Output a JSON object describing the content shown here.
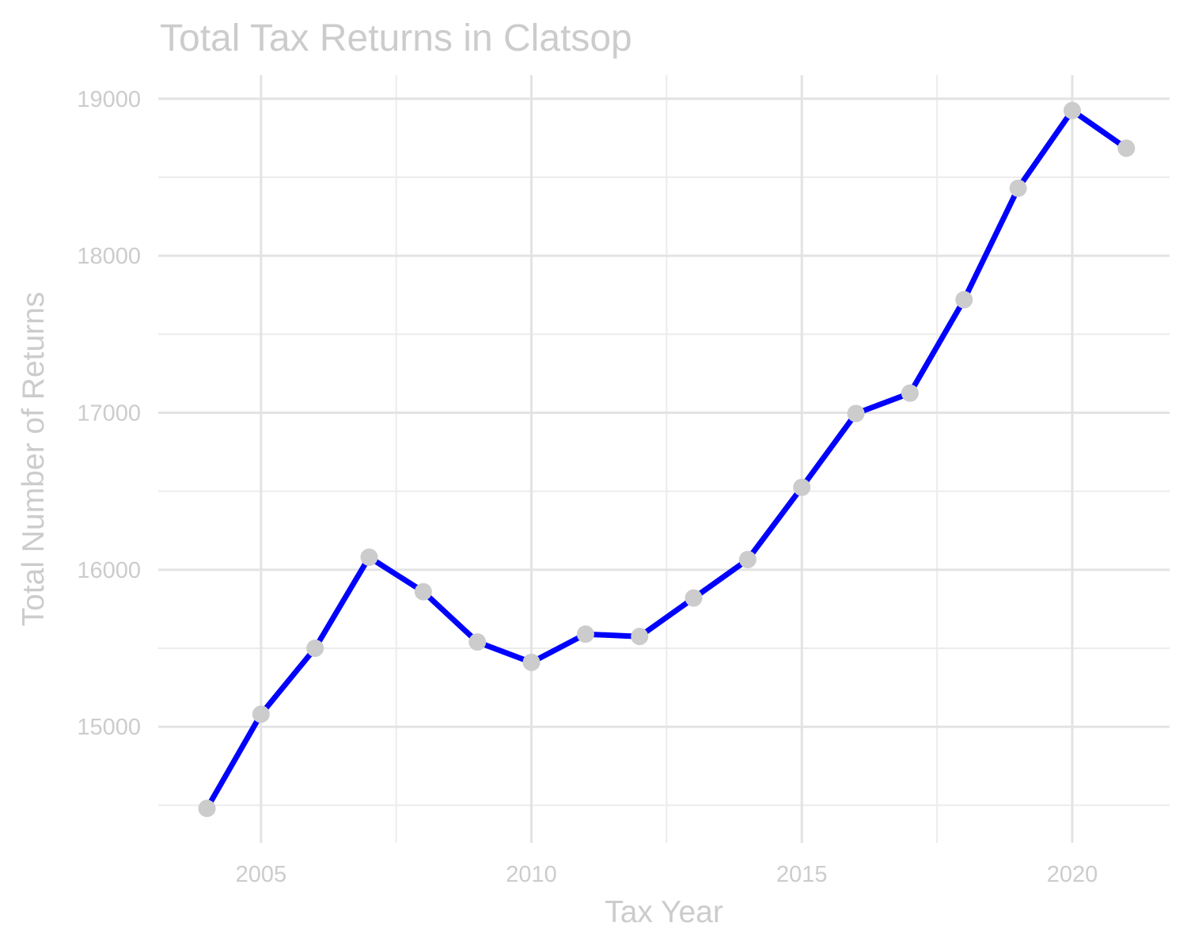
{
  "colors": {
    "line": "#0000ff",
    "point": "#cccccc",
    "text": "#cccccc",
    "grid_major": "#e3e3e3",
    "grid_minor": "#ececec",
    "background": "#ffffff"
  },
  "chart_data": {
    "type": "line",
    "title": "Total Tax Returns in Clatsop",
    "xlabel": "Tax Year",
    "ylabel": "Total Number of Returns",
    "x": [
      2004,
      2005,
      2006,
      2007,
      2008,
      2009,
      2010,
      2011,
      2012,
      2013,
      2014,
      2015,
      2016,
      2017,
      2018,
      2019,
      2020,
      2021
    ],
    "series": [
      {
        "values": [
          14480,
          15080,
          15500,
          16080,
          15860,
          15540,
          15410,
          15590,
          15575,
          15820,
          16065,
          16525,
          16995,
          17125,
          17720,
          18430,
          18925,
          18685
        ]
      }
    ],
    "xlim": [
      2003.1,
      2021.8
    ],
    "ylim": [
      14260,
      19150
    ],
    "x_ticks": [
      2005,
      2010,
      2015,
      2020
    ],
    "x_tick_labels": [
      "2005",
      "2010",
      "2015",
      "2020"
    ],
    "x_minor_ticks": [
      2007.5,
      2012.5,
      2017.5
    ],
    "y_ticks": [
      15000,
      16000,
      17000,
      18000,
      19000
    ],
    "y_tick_labels": [
      "15000",
      "16000",
      "17000",
      "18000",
      "19000"
    ],
    "y_minor_ticks": [
      14500,
      15500,
      16500,
      17500,
      18500
    ],
    "grid": true,
    "legend": "none"
  }
}
